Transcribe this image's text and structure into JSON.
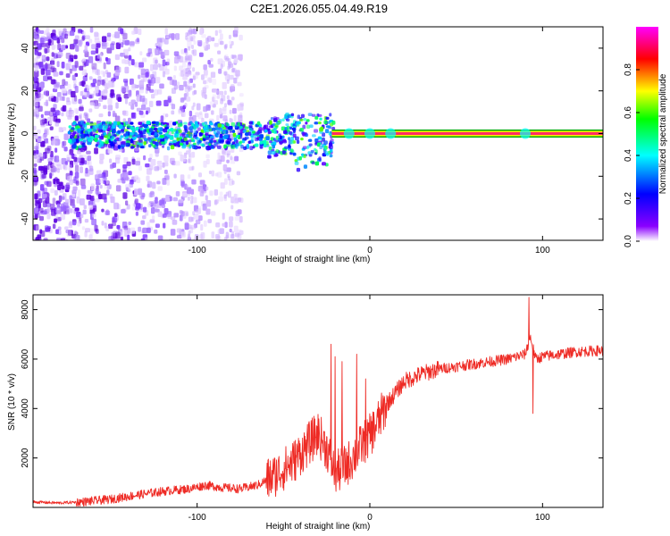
{
  "title": "C2E1.2026.055.04.49.R19",
  "colors": {
    "snr_line": "#ee2a24",
    "center_line_outer": "#00aa00",
    "center_line_inner": "#ff2a66",
    "axis": "#000000"
  },
  "chart_data": [
    {
      "type": "heatmap",
      "title": "",
      "xlabel": "Height of straight line (km)",
      "ylabel": "Frequency (Hz)",
      "xlim": [
        -195,
        135
      ],
      "ylim": [
        -50,
        50
      ],
      "xticks": [
        -100,
        0,
        100
      ],
      "xtick_labels": [
        "-100",
        "0",
        "100"
      ],
      "yticks": [
        -40,
        -20,
        0,
        20,
        40
      ],
      "ytick_labels": [
        "-40",
        "-20",
        "0",
        "20",
        "40"
      ],
      "colorbar": {
        "label": "Normalized spectral amplitude",
        "range": [
          0,
          1
        ],
        "ticks": [
          0,
          0.2,
          0.4,
          0.6,
          0.8
        ],
        "tick_labels": [
          "0.0",
          "0.2",
          "0.4",
          "0.6",
          "0.8"
        ],
        "stops": [
          "#ffffff",
          "#8a00ff",
          "#0000ff",
          "#00ffff",
          "#00ff00",
          "#ffff00",
          "#ff0000",
          "#ff00ff"
        ]
      },
      "features": {
        "center_line_x_start": -22,
        "center_line_frequency": 0,
        "scattered_noise_x_range": [
          -195,
          -75
        ],
        "broadband_band_x_range": [
          -175,
          -22
        ],
        "broadband_band_half_width_hz": 6
      }
    },
    {
      "type": "line",
      "title": "",
      "xlabel": "Height of straight line (km)",
      "ylabel": "SNR (10 * v/v)",
      "xlim": [
        -195,
        135
      ],
      "ylim": [
        0,
        8600
      ],
      "xticks": [
        -100,
        0,
        100
      ],
      "xtick_labels": [
        "-100",
        "0",
        "100"
      ],
      "yticks": [
        2000,
        4000,
        6000,
        8000
      ],
      "ytick_labels": [
        "2000",
        "4000",
        "6000",
        "8000"
      ],
      "series": [
        {
          "name": "SNR",
          "x": [
            -195,
            -180,
            -165,
            -150,
            -135,
            -120,
            -105,
            -95,
            -85,
            -75,
            -65,
            -55,
            -45,
            -40,
            -35,
            -30,
            -25,
            -20,
            -15,
            -10,
            -5,
            0,
            5,
            10,
            20,
            30,
            40,
            50,
            60,
            70,
            80,
            85,
            90,
            93,
            96,
            100,
            110,
            120,
            135
          ],
          "values": [
            220,
            180,
            230,
            330,
            500,
            650,
            750,
            900,
            800,
            750,
            900,
            1300,
            1800,
            2200,
            2600,
            3000,
            2400,
            1400,
            1600,
            2000,
            2500,
            2900,
            3500,
            4200,
            5100,
            5400,
            5600,
            5700,
            5800,
            5900,
            6000,
            6100,
            6200,
            6900,
            6000,
            6100,
            6200,
            6300,
            6350
          ]
        }
      ],
      "spikes": [
        {
          "x": -22.5,
          "value": 6600
        },
        {
          "x": -20.0,
          "value": 6100
        },
        {
          "x": -16.0,
          "value": 5900
        },
        {
          "x": -7.5,
          "value": 6200
        },
        {
          "x": -2.5,
          "value": 5200
        },
        {
          "x": 92.0,
          "value": 8500
        },
        {
          "x": 94.5,
          "value": 3800
        }
      ]
    }
  ]
}
